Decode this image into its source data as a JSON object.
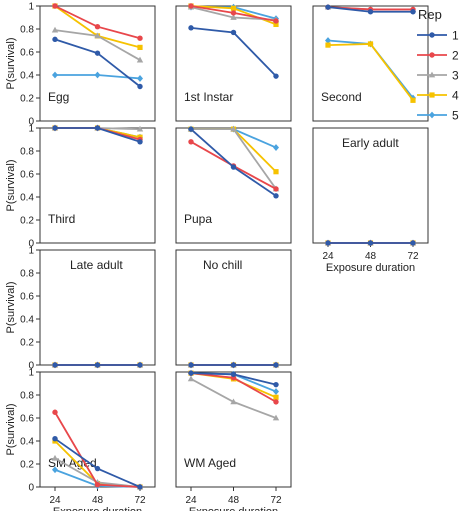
{
  "chart_data": {
    "type": "line",
    "ylabel": "P(survival)",
    "xlabel": "Exposure duration",
    "x": [
      24,
      48,
      72
    ],
    "xtick_labels": [
      "24",
      "48",
      "72"
    ],
    "ylim": [
      0,
      1
    ],
    "yticks": [
      "0",
      "0.2",
      "0.4",
      "0.6",
      "0.8",
      "1"
    ],
    "legend": {
      "title": "Rep",
      "placement": "right",
      "entries": [
        "1",
        "2",
        "3",
        "4",
        "5"
      ]
    },
    "series_colors": {
      "1": "#2f5aa8",
      "2": "#e8474b",
      "3": "#a6a6a6",
      "4": "#f6c200",
      "5": "#4aa3df"
    },
    "series_markers": {
      "1": "circle",
      "2": "circle",
      "3": "triangle",
      "4": "square",
      "5": "diamond"
    },
    "panels": [
      {
        "label": "Egg",
        "series": [
          {
            "name": "1",
            "values": [
              0.71,
              0.59,
              0.3
            ]
          },
          {
            "name": "2",
            "values": [
              1.0,
              0.82,
              0.72
            ]
          },
          {
            "name": "3",
            "values": [
              0.79,
              0.74,
              0.53
            ]
          },
          {
            "name": "4",
            "values": [
              1.0,
              0.74,
              0.64
            ]
          },
          {
            "name": "5",
            "values": [
              0.4,
              0.4,
              0.37
            ]
          }
        ]
      },
      {
        "label": "1st Instar",
        "series": [
          {
            "name": "1",
            "values": [
              0.81,
              0.77,
              0.39
            ]
          },
          {
            "name": "2",
            "values": [
              1.0,
              0.94,
              0.87
            ]
          },
          {
            "name": "3",
            "values": [
              0.99,
              0.9,
              0.88
            ]
          },
          {
            "name": "4",
            "values": [
              1.0,
              0.98,
              0.84
            ]
          },
          {
            "name": "5",
            "values": [
              0.99,
              0.99,
              0.89
            ]
          }
        ]
      },
      {
        "label": "Second",
        "series": [
          {
            "name": "1",
            "values": [
              0.99,
              0.95,
              0.95
            ]
          },
          {
            "name": "2",
            "values": [
              0.99,
              0.97,
              0.97
            ]
          },
          {
            "name": "3",
            "values": [
              0.99,
              0.97,
              0.97
            ]
          },
          {
            "name": "4",
            "values": [
              0.66,
              0.67,
              0.18
            ]
          },
          {
            "name": "5",
            "values": [
              0.7,
              0.67,
              0.2
            ]
          }
        ]
      },
      {
        "label": "Third",
        "series": [
          {
            "name": "1",
            "values": [
              1.0,
              1.0,
              0.88
            ]
          },
          {
            "name": "2",
            "values": [
              1.0,
              1.0,
              0.9
            ]
          },
          {
            "name": "3",
            "values": [
              1.0,
              1.0,
              0.99
            ]
          },
          {
            "name": "4",
            "values": [
              1.0,
              1.0,
              0.92
            ]
          },
          {
            "name": "5",
            "values": [
              1.0,
              1.0,
              0.92
            ]
          }
        ]
      },
      {
        "label": "Pupa",
        "series": [
          {
            "name": "1",
            "values": [
              0.99,
              0.66,
              0.41
            ]
          },
          {
            "name": "2",
            "values": [
              0.88,
              0.67,
              0.47
            ]
          },
          {
            "name": "3",
            "values": [
              0.99,
              0.99,
              0.47
            ]
          },
          {
            "name": "4",
            "values": [
              0.99,
              0.99,
              0.62
            ]
          },
          {
            "name": "5",
            "values": [
              0.99,
              0.99,
              0.83
            ]
          }
        ]
      },
      {
        "label": "Early adult",
        "show_x_ticks": true,
        "series": [
          {
            "name": "1",
            "values": [
              0,
              0,
              0
            ]
          },
          {
            "name": "2",
            "values": [
              0,
              0,
              0
            ]
          },
          {
            "name": "3",
            "values": [
              0,
              0,
              0
            ]
          },
          {
            "name": "4",
            "values": [
              0,
              0,
              0
            ]
          },
          {
            "name": "5",
            "values": [
              0,
              0,
              0
            ]
          }
        ]
      },
      {
        "label": "Late adult",
        "series": [
          {
            "name": "1",
            "values": [
              0,
              0,
              0
            ]
          },
          {
            "name": "2",
            "values": [
              0,
              0,
              0
            ]
          },
          {
            "name": "3",
            "values": [
              0,
              0,
              0
            ]
          },
          {
            "name": "4",
            "values": [
              0,
              0,
              0
            ]
          },
          {
            "name": "5",
            "values": [
              0,
              0,
              0
            ]
          }
        ]
      },
      {
        "label": "No chill",
        "series": [
          {
            "name": "1",
            "values": [
              0,
              0,
              0
            ]
          },
          {
            "name": "2",
            "values": [
              0,
              0,
              0
            ]
          },
          {
            "name": "3",
            "values": [
              0,
              0,
              0
            ]
          },
          {
            "name": "4",
            "values": [
              0,
              0,
              0
            ]
          },
          {
            "name": "5",
            "values": [
              0,
              0,
              0
            ]
          }
        ]
      },
      {
        "label": "SM Aged",
        "show_x_ticks": true,
        "series": [
          {
            "name": "1",
            "values": [
              0.42,
              0.16,
              0.0
            ]
          },
          {
            "name": "2",
            "values": [
              0.65,
              0.02,
              0.0
            ]
          },
          {
            "name": "3",
            "values": [
              0.25,
              0.04,
              0.0
            ]
          },
          {
            "name": "4",
            "values": [
              0.4,
              0.03,
              0.0
            ]
          },
          {
            "name": "5",
            "values": [
              0.15,
              0.01,
              0.0
            ]
          }
        ]
      },
      {
        "label": "WM Aged",
        "show_x_ticks": true,
        "series": [
          {
            "name": "1",
            "values": [
              0.99,
              0.98,
              0.89
            ]
          },
          {
            "name": "2",
            "values": [
              0.99,
              0.95,
              0.74
            ]
          },
          {
            "name": "3",
            "values": [
              0.94,
              0.74,
              0.6
            ]
          },
          {
            "name": "4",
            "values": [
              0.99,
              0.94,
              0.78
            ]
          },
          {
            "name": "5",
            "values": [
              0.99,
              0.98,
              0.83
            ]
          }
        ]
      }
    ]
  }
}
